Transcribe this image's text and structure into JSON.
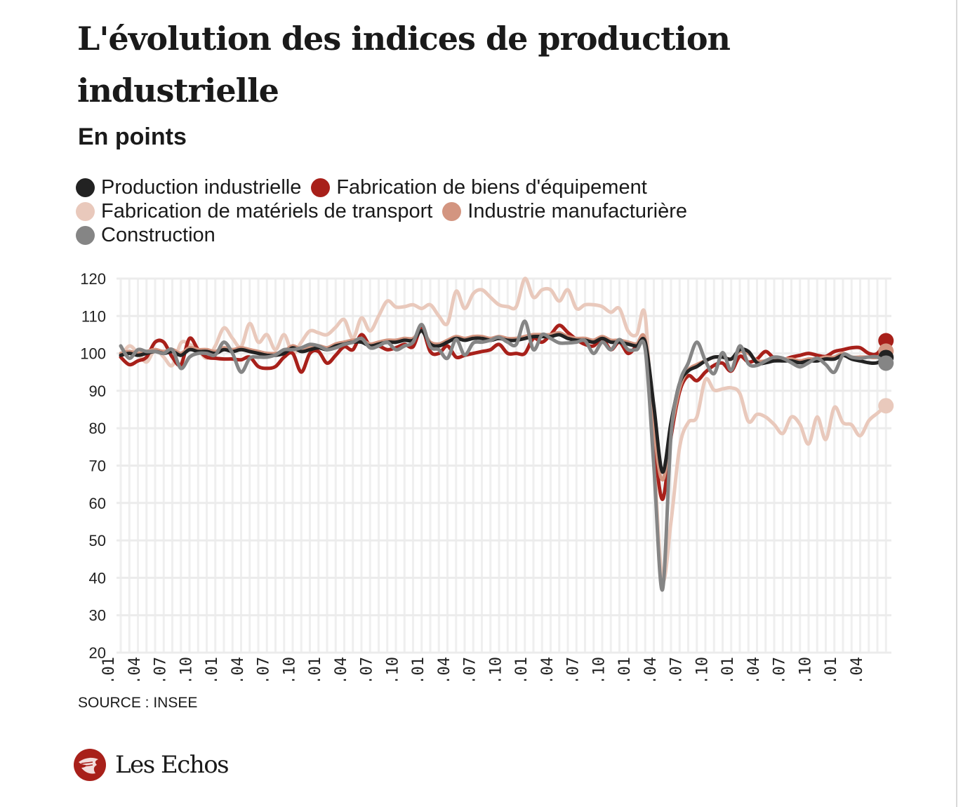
{
  "header": {
    "title": "L'évolution des indices de production industrielle",
    "subtitle": "En points"
  },
  "legend": [
    {
      "label": "Production industrielle",
      "color": "#222222"
    },
    {
      "label": "Fabrication de biens d'équipement",
      "color": "#a8201a"
    },
    {
      "label": "Fabrication de matériels de transport",
      "color": "#e9c9bc"
    },
    {
      "label": "Industrie manufacturière",
      "color": "#d39580"
    },
    {
      "label": "Construction",
      "color": "#858585"
    }
  ],
  "footer": {
    "source": "SOURCE : INSEE",
    "logo": "Les Echos",
    "logo_color": "#a8201a"
  },
  "chart_data": {
    "type": "line",
    "title": "L'évolution des indices de production industrielle",
    "subtitle": "En points",
    "ylim": [
      20,
      120
    ],
    "yticks": [
      20,
      30,
      40,
      50,
      60,
      70,
      80,
      90,
      100,
      110,
      120
    ],
    "grid": true,
    "legend_position": "top",
    "x": [
      "2015-01",
      "2015-02",
      "2015-03",
      "2015-04",
      "2015-05",
      "2015-06",
      "2015-07",
      "2015-08",
      "2015-09",
      "2015-10",
      "2015-11",
      "2015-12",
      "2016-01",
      "2016-02",
      "2016-03",
      "2016-04",
      "2016-05",
      "2016-06",
      "2016-07",
      "2016-08",
      "2016-09",
      "2016-10",
      "2016-11",
      "2016-12",
      "2017-01",
      "2017-02",
      "2017-03",
      "2017-04",
      "2017-05",
      "2017-06",
      "2017-07",
      "2017-08",
      "2017-09",
      "2017-10",
      "2017-11",
      "2017-12",
      "2018-01",
      "2018-02",
      "2018-03",
      "2018-04",
      "2018-05",
      "2018-06",
      "2018-07",
      "2018-08",
      "2018-09",
      "2018-10",
      "2018-11",
      "2018-12",
      "2019-01",
      "2019-02",
      "2019-03",
      "2019-04",
      "2019-05",
      "2019-06",
      "2019-07",
      "2019-08",
      "2019-09",
      "2019-10",
      "2019-11",
      "2019-12",
      "2020-01",
      "2020-02",
      "2020-03",
      "2020-04",
      "2020-05",
      "2020-06",
      "2020-07",
      "2020-08",
      "2020-09",
      "2020-10",
      "2020-11",
      "2020-12",
      "2021-01",
      "2021-02",
      "2021-03",
      "2021-04",
      "2021-05",
      "2021-06",
      "2021-07",
      "2021-08",
      "2021-09",
      "2021-10",
      "2021-11",
      "2021-12",
      "2022-01",
      "2022-02",
      "2022-03",
      "2022-04",
      "2022-05",
      "2022-06"
    ],
    "xtick_labels": [
      ".01",
      ".04",
      ".07",
      ".10",
      ".01",
      ".04",
      ".07",
      ".10",
      ".01",
      ".04",
      ".07",
      ".10",
      ".01",
      ".04",
      ".07",
      ".10",
      ".01",
      ".04",
      ".07",
      ".10",
      ".01",
      ".04",
      ".07",
      ".10",
      ".01",
      ".04",
      ".07",
      ".10",
      ".01",
      ".04"
    ],
    "series": [
      {
        "name": "Fabrication de matériels de transport",
        "color": "#e9c9bc",
        "values": [
          99,
          102,
          100,
          97.7,
          101,
          99,
          96.8,
          102.8,
          102.4,
          101,
          98.7,
          102,
          106.8,
          104,
          101.8,
          108,
          103,
          105,
          101,
          105,
          100,
          103,
          106,
          105.5,
          105,
          107,
          109,
          104,
          109.5,
          106,
          110,
          114,
          112.4,
          112.5,
          113,
          112,
          113,
          110,
          108,
          116.6,
          112,
          116,
          117,
          115,
          113,
          112.5,
          112.5,
          120,
          115,
          117,
          117,
          114,
          117,
          112,
          113,
          113,
          112.5,
          111,
          112,
          106,
          105,
          110,
          73,
          39.6,
          55,
          75,
          81.5,
          83,
          93,
          90.2,
          90.5,
          90.8,
          89.3,
          81.8,
          83.7,
          83,
          81,
          78.6,
          83,
          81,
          75.8,
          83,
          77,
          85.6,
          81.5,
          80.9,
          78,
          82,
          84,
          86
        ]
      },
      {
        "name": "Fabrication de biens d'équipement",
        "color": "#a8201a",
        "values": [
          99,
          97,
          98,
          99,
          103,
          103,
          99,
          97,
          104,
          101,
          99,
          98.7,
          98.5,
          98.5,
          98.3,
          99,
          96.5,
          96,
          96.5,
          99,
          100,
          95,
          100,
          100.5,
          97.4,
          99.5,
          101.8,
          101,
          105,
          102,
          102,
          101,
          101.5,
          102.4,
          101.8,
          106.7,
          100.5,
          100,
          102,
          99,
          99.5,
          100,
          100.5,
          101,
          102.4,
          100,
          100,
          100,
          104,
          103,
          105,
          107.5,
          105.6,
          103.7,
          102.4,
          102,
          104,
          101,
          103,
          100,
          101.8,
          102,
          77.7,
          61,
          77.7,
          89.8,
          94,
          92.7,
          95,
          96.8,
          97.4,
          95.3,
          99.2,
          97.7,
          98.5,
          100.5,
          98.7,
          98.3,
          99,
          99.5,
          100,
          99.5,
          99.2,
          100.5,
          101,
          101.5,
          101.5,
          100,
          100,
          103.4
        ]
      },
      {
        "name": "Industrie manufacturière",
        "color": "#d39580",
        "values": [
          100,
          100.5,
          100,
          100.5,
          101,
          100.5,
          101,
          100,
          101.5,
          101,
          101,
          100.5,
          101.5,
          101,
          101.5,
          101,
          100.5,
          100,
          100,
          100.5,
          102,
          101,
          101.5,
          102,
          101.5,
          102.5,
          103,
          103.5,
          103.5,
          102.5,
          103,
          103.5,
          103.5,
          104,
          104,
          106,
          103,
          102.5,
          103.5,
          104.5,
          104,
          104.5,
          104.5,
          104,
          104.5,
          104,
          104,
          104.5,
          105,
          105,
          105,
          105.5,
          104.5,
          104,
          104,
          103.5,
          104.5,
          103.5,
          103.5,
          103,
          102.5,
          103.5,
          80,
          66.2,
          79.5,
          90.8,
          95.5,
          97,
          98,
          99,
          99,
          98.5,
          100.5,
          100,
          98,
          98,
          98.5,
          98.5,
          98.5,
          98,
          98.5,
          98.5,
          99,
          99,
          100,
          99,
          99,
          99,
          99,
          100.6
        ]
      },
      {
        "name": "Production industrielle",
        "color": "#222222",
        "values": [
          99.5,
          100,
          99.5,
          100,
          100.5,
          100,
          100.5,
          99.5,
          101,
          100.5,
          100.5,
          100,
          101,
          100.5,
          101,
          100.5,
          100,
          99.5,
          99.5,
          100,
          101.5,
          100.5,
          101,
          101.5,
          101,
          102,
          102.5,
          103,
          103,
          102,
          102.5,
          103,
          103,
          103.5,
          103.5,
          106,
          102.5,
          102,
          103,
          104,
          103.5,
          104,
          104,
          103.5,
          104,
          103.5,
          103.5,
          104,
          104.5,
          104.5,
          104.5,
          105,
          104,
          103.5,
          103.5,
          103,
          104,
          103,
          103,
          102.5,
          102,
          103,
          86,
          68.3,
          81.5,
          92,
          95.3,
          96.5,
          98,
          99,
          99,
          98.5,
          101,
          100.5,
          97.5,
          97.5,
          98,
          98,
          98,
          97.5,
          98,
          98,
          98.5,
          98.5,
          99.5,
          98.5,
          98,
          97.5,
          97.5,
          98.9
        ]
      },
      {
        "name": "Construction",
        "color": "#858585",
        "values": [
          102,
          98.7,
          101,
          100.5,
          100.5,
          100,
          101,
          96,
          99,
          100,
          100,
          99.6,
          103,
          100,
          95,
          98.7,
          99,
          99,
          99.6,
          101,
          101,
          101.5,
          102.4,
          102,
          101,
          101.5,
          102.4,
          103,
          104,
          101.5,
          102,
          103,
          101,
          102,
          103,
          107.7,
          101.8,
          101,
          98.7,
          103.7,
          99.6,
          102.8,
          103,
          103.5,
          104.3,
          103,
          102.4,
          108.6,
          101,
          105,
          104,
          102.8,
          102.8,
          103,
          103.4,
          100,
          103,
          101,
          103.7,
          101,
          101,
          101,
          70,
          36.8,
          78,
          92,
          97.4,
          103,
          98,
          94.6,
          100.2,
          95.5,
          102,
          97.2,
          96.8,
          98,
          99,
          98.7,
          97.5,
          96.4,
          97.5,
          98.7,
          97,
          95,
          99.6,
          99,
          98.7,
          99,
          99,
          97.4
        ]
      }
    ]
  }
}
